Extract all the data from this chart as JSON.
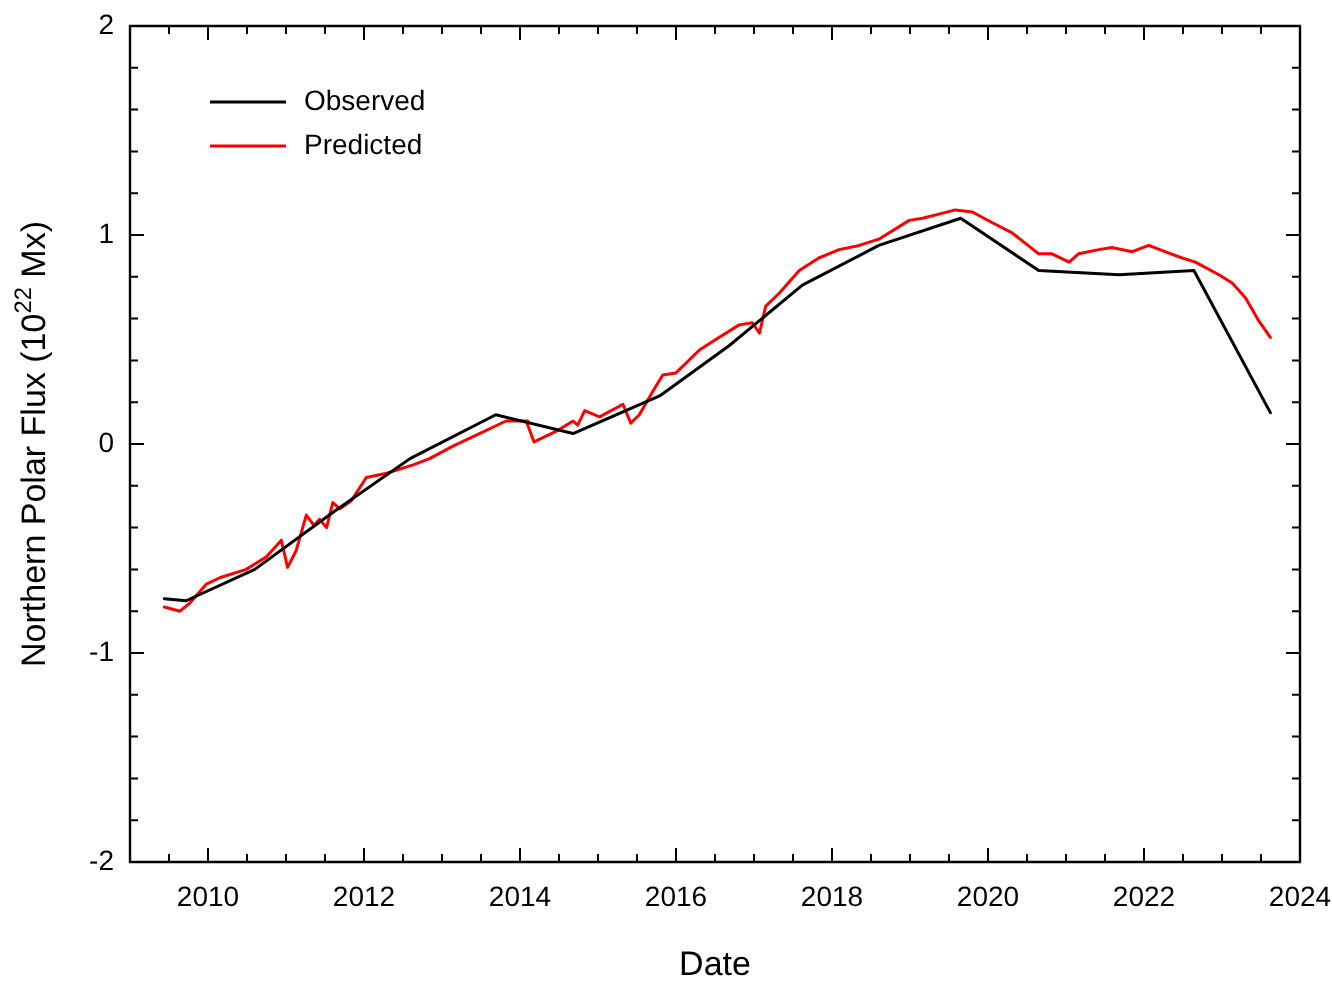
{
  "chart_data": {
    "type": "line",
    "xlabel": "Date",
    "ylabel": "Northern Polar Flux (10$^{22}$ Mx)",
    "xlim": [
      2009,
      2024
    ],
    "xticks": [
      {
        "value": 2009,
        "label": null
      },
      {
        "value": 2009.5,
        "label": null
      },
      2010,
      {
        "value": 2010.5,
        "label": null
      },
      {
        "value": 2011,
        "label": null
      },
      {
        "value": 2011.5,
        "label": null
      },
      2012,
      {
        "value": 2012.5,
        "label": null
      },
      {
        "value": 2013,
        "label": null
      },
      {
        "value": 2013.5,
        "label": null
      },
      2014,
      {
        "value": 2014.5,
        "label": null
      },
      {
        "value": 2015,
        "label": null
      },
      {
        "value": 2015.5,
        "label": null
      },
      2016,
      {
        "value": 2016.5,
        "label": null
      },
      {
        "value": 2017,
        "label": null
      },
      {
        "value": 2017.5,
        "label": null
      },
      2018,
      {
        "value": 2018.5,
        "label": null
      },
      {
        "value": 2019,
        "label": null
      },
      {
        "value": 2019.5,
        "label": null
      },
      2020,
      {
        "value": 2020.5,
        "label": null
      },
      {
        "value": 2021,
        "label": null
      },
      {
        "value": 2021.5,
        "label": null
      },
      2022,
      {
        "value": 2022.5,
        "label": null
      },
      {
        "value": 2023,
        "label": null
      },
      {
        "value": 2023.5,
        "label": null
      },
      2024
    ],
    "ylim": [
      -2,
      2
    ],
    "yticks": [
      -2,
      {
        "value": -1.8,
        "label": null
      },
      {
        "value": -1.6,
        "label": null
      },
      {
        "value": -1.4,
        "label": null
      },
      {
        "value": -1.2,
        "label": null
      },
      -1,
      {
        "value": -0.8,
        "label": null
      },
      {
        "value": -0.6,
        "label": null
      },
      {
        "value": -0.4,
        "label": null
      },
      {
        "value": -0.2,
        "label": null
      },
      0,
      {
        "value": 0.2,
        "label": null
      },
      {
        "value": 0.4,
        "label": null
      },
      {
        "value": 0.6,
        "label": null
      },
      {
        "value": 0.8,
        "label": null
      },
      1,
      {
        "value": 1.2,
        "label": null
      },
      {
        "value": 1.4,
        "label": null
      },
      {
        "value": 1.6,
        "label": null
      },
      {
        "value": 1.8,
        "label": null
      },
      2
    ],
    "grid": false,
    "legend": "top left",
    "marker": "none",
    "line_style": "solid",
    "series": [
      {
        "name": "Observed",
        "color": "#000000",
        "x": [
          2009.44,
          2009.72,
          2010.6,
          2011.59,
          2012.59,
          2013.69,
          2014.68,
          2015.79,
          2016.68,
          2017.62,
          2018.6,
          2019.65,
          2020.65,
          2021.68,
          2022.64,
          2023.62
        ],
        "values": [
          -0.74,
          -0.75,
          -0.6,
          -0.33,
          -0.07,
          0.14,
          0.05,
          0.23,
          0.47,
          0.76,
          0.95,
          1.08,
          0.83,
          0.81,
          0.83,
          0.15
        ]
      },
      {
        "name": "Predicted",
        "color": "#ff0000",
        "x": [
          2009.44,
          2009.64,
          2009.77,
          2009.98,
          2010.15,
          2010.49,
          2010.75,
          2010.94,
          2011.02,
          2011.13,
          2011.26,
          2011.36,
          2011.43,
          2011.52,
          2011.6,
          2011.69,
          2011.84,
          2012.03,
          2012.29,
          2012.63,
          2012.84,
          2013.14,
          2013.48,
          2013.82,
          2014.08,
          2014.1,
          2014.18,
          2014.46,
          2014.68,
          2014.74,
          2014.83,
          2015.02,
          2015.32,
          2015.42,
          2015.53,
          2015.7,
          2015.83,
          2016.0,
          2016.3,
          2016.55,
          2016.81,
          2016.98,
          2017.07,
          2017.15,
          2017.32,
          2017.58,
          2017.83,
          2018.09,
          2018.35,
          2018.43,
          2018.6,
          2018.99,
          2019.16,
          2019.37,
          2019.58,
          2019.8,
          2020.05,
          2020.31,
          2020.48,
          2020.65,
          2020.82,
          2021.04,
          2021.16,
          2021.42,
          2021.59,
          2021.85,
          2022.06,
          2022.27,
          2022.49,
          2022.66,
          2022.96,
          2023.13,
          2023.3,
          2023.47,
          2023.62
        ],
        "values": [
          -0.78,
          -0.8,
          -0.76,
          -0.67,
          -0.64,
          -0.6,
          -0.54,
          -0.46,
          -0.59,
          -0.51,
          -0.34,
          -0.39,
          -0.36,
          -0.4,
          -0.28,
          -0.31,
          -0.27,
          -0.16,
          -0.14,
          -0.1,
          -0.07,
          -0.01,
          0.05,
          0.11,
          0.11,
          0.09,
          0.01,
          0.06,
          0.11,
          0.09,
          0.16,
          0.13,
          0.19,
          0.1,
          0.14,
          0.25,
          0.33,
          0.34,
          0.45,
          0.51,
          0.57,
          0.58,
          0.53,
          0.66,
          0.72,
          0.83,
          0.89,
          0.93,
          0.95,
          0.96,
          0.98,
          1.07,
          1.08,
          1.1,
          1.12,
          1.11,
          1.06,
          1.01,
          0.96,
          0.91,
          0.91,
          0.87,
          0.91,
          0.93,
          0.94,
          0.92,
          0.95,
          0.92,
          0.89,
          0.87,
          0.81,
          0.77,
          0.7,
          0.59,
          0.51
        ]
      }
    ]
  }
}
